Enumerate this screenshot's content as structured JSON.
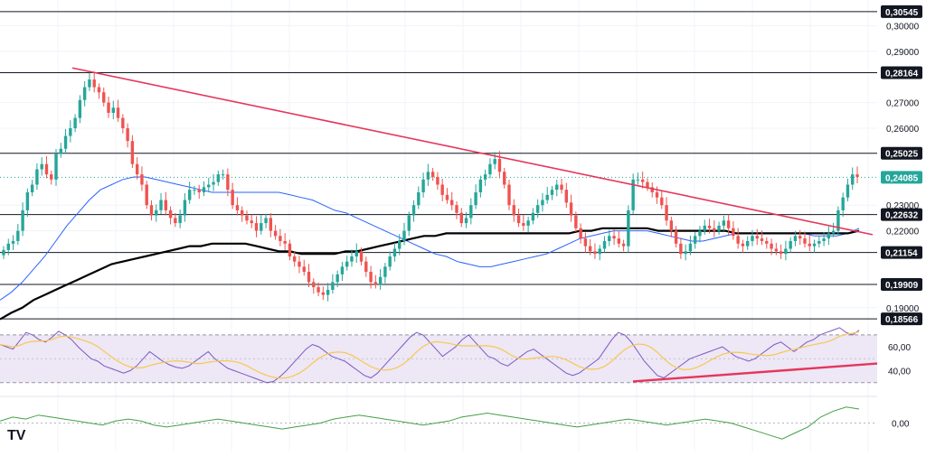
{
  "brand": {
    "logo_text": "TV"
  },
  "chart_data": {
    "type": "candlestick",
    "price_axis": {
      "ticks": [
        "0,30000",
        "0,29000",
        "0,27000",
        "0,26000",
        "0,23000",
        "0,22000",
        "0,19000"
      ],
      "tick_values": [
        0.3,
        0.29,
        0.27,
        0.26,
        0.23,
        0.22,
        0.19
      ],
      "range": [
        0.185,
        0.31
      ]
    },
    "levels": [
      {
        "label": "0,30545",
        "value": 0.30545
      },
      {
        "label": "0,28164",
        "value": 0.28164
      },
      {
        "label": "0,25025",
        "value": 0.25025
      },
      {
        "label": "0,22632",
        "value": 0.22632
      },
      {
        "label": "0,21154",
        "value": 0.21154
      },
      {
        "label": "0,19909",
        "value": 0.19909
      },
      {
        "label": "0,18566",
        "value": 0.18566
      }
    ],
    "last_price": {
      "label": "0,24085",
      "value": 0.24085,
      "color": "#26a69a"
    },
    "candle_colors": {
      "up": "#26a69a",
      "down": "#ef5350"
    },
    "trendline_color": "#e5365a",
    "close_series": [
      0.2125,
      0.215,
      0.216,
      0.22,
      0.228,
      0.235,
      0.238,
      0.244,
      0.246,
      0.242,
      0.24,
      0.25,
      0.252,
      0.257,
      0.26,
      0.264,
      0.271,
      0.276,
      0.279,
      0.276,
      0.274,
      0.27,
      0.266,
      0.268,
      0.264,
      0.26,
      0.255,
      0.246,
      0.242,
      0.238,
      0.23,
      0.226,
      0.228,
      0.232,
      0.228,
      0.225,
      0.223,
      0.226,
      0.232,
      0.236,
      0.236,
      0.235,
      0.237,
      0.238,
      0.239,
      0.242,
      0.242,
      0.236,
      0.23,
      0.228,
      0.226,
      0.224,
      0.223,
      0.22,
      0.223,
      0.225,
      0.22,
      0.218,
      0.216,
      0.215,
      0.21,
      0.208,
      0.206,
      0.204,
      0.2,
      0.198,
      0.196,
      0.195,
      0.197,
      0.2,
      0.203,
      0.206,
      0.208,
      0.21,
      0.212,
      0.208,
      0.204,
      0.2,
      0.199,
      0.202,
      0.206,
      0.21,
      0.213,
      0.216,
      0.22,
      0.226,
      0.23,
      0.235,
      0.24,
      0.243,
      0.241,
      0.238,
      0.234,
      0.232,
      0.23,
      0.227,
      0.223,
      0.225,
      0.23,
      0.235,
      0.24,
      0.242,
      0.246,
      0.248,
      0.243,
      0.238,
      0.23,
      0.226,
      0.223,
      0.222,
      0.224,
      0.227,
      0.23,
      0.232,
      0.234,
      0.236,
      0.238,
      0.236,
      0.231,
      0.226,
      0.221,
      0.217,
      0.214,
      0.212,
      0.211,
      0.213,
      0.216,
      0.218,
      0.217,
      0.215,
      0.214,
      0.228,
      0.24,
      0.24,
      0.239,
      0.237,
      0.235,
      0.233,
      0.23,
      0.224,
      0.22,
      0.215,
      0.211,
      0.212,
      0.215,
      0.218,
      0.22,
      0.222,
      0.221,
      0.22,
      0.222,
      0.224,
      0.221,
      0.218,
      0.215,
      0.214,
      0.216,
      0.218,
      0.217,
      0.216,
      0.215,
      0.213,
      0.212,
      0.211,
      0.213,
      0.216,
      0.218,
      0.217,
      0.215,
      0.214,
      0.215,
      0.216,
      0.217,
      0.219,
      0.22,
      0.228,
      0.233,
      0.238,
      0.242,
      0.241
    ],
    "ma50_series": [
      0.193,
      0.196,
      0.2,
      0.205,
      0.21,
      0.216,
      0.222,
      0.227,
      0.232,
      0.236,
      0.238,
      0.24,
      0.241,
      0.241,
      0.24,
      0.239,
      0.238,
      0.237,
      0.236,
      0.235,
      0.235,
      0.235,
      0.235,
      0.235,
      0.235,
      0.235,
      0.234,
      0.233,
      0.232,
      0.23,
      0.228,
      0.227,
      0.225,
      0.223,
      0.221,
      0.219,
      0.217,
      0.215,
      0.213,
      0.211,
      0.21,
      0.208,
      0.207,
      0.206,
      0.206,
      0.207,
      0.208,
      0.209,
      0.21,
      0.211,
      0.213,
      0.215,
      0.217,
      0.218,
      0.219,
      0.22,
      0.22,
      0.22,
      0.22,
      0.219,
      0.218,
      0.217,
      0.216,
      0.216,
      0.217,
      0.218,
      0.219,
      0.219,
      0.219,
      0.219,
      0.219,
      0.219,
      0.219,
      0.218,
      0.218,
      0.218,
      0.219,
      0.221
    ],
    "ma200_series": [
      0.1855,
      0.188,
      0.19,
      0.193,
      0.195,
      0.197,
      0.199,
      0.201,
      0.203,
      0.205,
      0.207,
      0.208,
      0.209,
      0.21,
      0.211,
      0.212,
      0.213,
      0.214,
      0.214,
      0.215,
      0.215,
      0.215,
      0.215,
      0.214,
      0.213,
      0.212,
      0.212,
      0.211,
      0.211,
      0.211,
      0.211,
      0.212,
      0.212,
      0.213,
      0.214,
      0.215,
      0.216,
      0.217,
      0.218,
      0.218,
      0.219,
      0.219,
      0.219,
      0.219,
      0.219,
      0.219,
      0.219,
      0.219,
      0.219,
      0.219,
      0.219,
      0.219,
      0.22,
      0.22,
      0.221,
      0.221,
      0.221,
      0.221,
      0.221,
      0.22,
      0.22,
      0.22,
      0.22,
      0.22,
      0.22,
      0.22,
      0.219,
      0.219,
      0.219,
      0.219,
      0.219,
      0.219,
      0.219,
      0.219,
      0.219,
      0.219,
      0.219,
      0.22
    ],
    "rsi": {
      "ticks": [
        "60,00",
        "40,00"
      ],
      "tick_values": [
        60,
        40
      ],
      "bands": [
        70,
        30
      ],
      "line_color": "#7e57c2",
      "signal_color": "#f9c74f",
      "band_fill": "#ede7f6",
      "series": [
        62,
        60,
        58,
        65,
        72,
        70,
        66,
        64,
        68,
        73,
        70,
        66,
        60,
        55,
        50,
        48,
        44,
        42,
        40,
        38,
        40,
        44,
        50,
        56,
        52,
        48,
        45,
        43,
        42,
        44,
        48,
        52,
        56,
        50,
        46,
        42,
        40,
        38,
        36,
        34,
        32,
        30,
        31,
        35,
        40,
        46,
        52,
        58,
        62,
        60,
        56,
        52,
        50,
        48,
        44,
        40,
        36,
        34,
        38,
        44,
        50,
        56,
        62,
        68,
        72,
        70,
        64,
        58,
        52,
        56,
        60,
        66,
        70,
        64,
        58,
        52,
        50,
        46,
        44,
        48,
        52,
        56,
        58,
        54,
        50,
        46,
        42,
        38,
        36,
        38,
        42,
        46,
        50,
        58,
        66,
        72,
        70,
        64,
        56,
        48,
        42,
        36,
        34,
        38,
        42,
        46,
        50,
        52,
        54,
        56,
        58,
        60,
        56,
        52,
        50,
        48,
        50,
        54,
        58,
        62,
        64,
        60,
        56,
        60,
        64,
        66,
        70,
        72,
        74,
        76,
        72,
        70,
        74
      ]
    },
    "oscillator": {
      "ticks": [
        "0,00"
      ],
      "tick_values": [
        0
      ],
      "line_color": "#43a047",
      "series": [
        0.001,
        0.003,
        0.002,
        0.004,
        0.003,
        0.002,
        0.001,
        0.0,
        -0.001,
        0.001,
        0.002,
        0.001,
        -0.001,
        -0.002,
        -0.001,
        0.0,
        0.001,
        0.002,
        0.001,
        0.0,
        -0.001,
        -0.002,
        -0.003,
        -0.002,
        -0.001,
        0.0,
        0.002,
        0.003,
        0.004,
        0.003,
        0.002,
        0.001,
        0.0,
        -0.001,
        0.0,
        0.001,
        0.003,
        0.004,
        0.005,
        0.004,
        0.003,
        0.002,
        0.001,
        0.0,
        -0.001,
        -0.002,
        -0.001,
        0.0,
        0.001,
        0.002,
        0.001,
        0.0,
        -0.001,
        0.0,
        0.001,
        0.002,
        0.001,
        0.0,
        -0.002,
        -0.004,
        -0.006,
        -0.008,
        -0.005,
        -0.002,
        0.003,
        0.006,
        0.008,
        0.007
      ]
    }
  }
}
